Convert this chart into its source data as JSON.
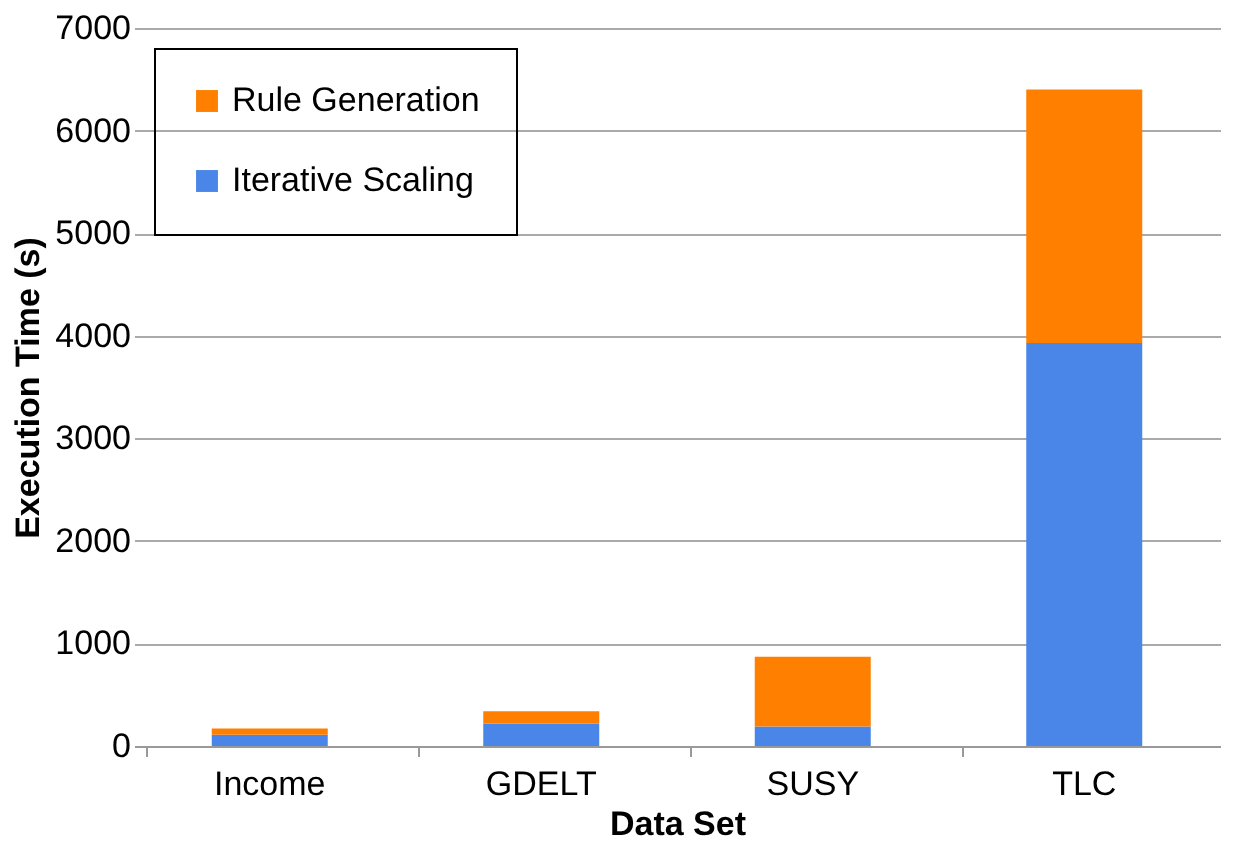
{
  "chart_data": {
    "type": "bar",
    "stacked": true,
    "xlabel": "Data Set",
    "ylabel": "Execution Time (s)",
    "categories": [
      "Income",
      "GDELT",
      "SUSY",
      "TLC"
    ],
    "series": [
      {
        "name": "Iterative Scaling",
        "color": "#4a86e8",
        "values": [
          110,
          220,
          190,
          3930
        ]
      },
      {
        "name": "Rule Generation",
        "color": "#ff8000",
        "values": [
          60,
          120,
          680,
          2470
        ]
      }
    ],
    "ylim": [
      0,
      7000
    ],
    "yticks": [
      0,
      1000,
      2000,
      3000,
      4000,
      5000,
      6000,
      7000
    ],
    "grid": "y",
    "legend": "top left"
  }
}
